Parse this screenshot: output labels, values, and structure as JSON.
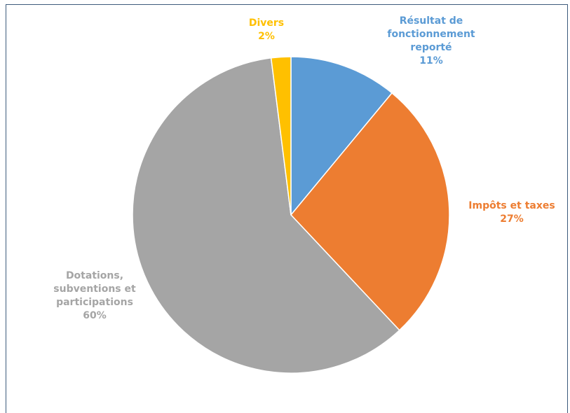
{
  "chart_data": {
    "type": "pie",
    "title": "",
    "slices": [
      {
        "label_lines": [
          "Résultat de",
          "fonctionnement",
          "reporté"
        ],
        "label": "Résultat de fonctionnement reporté",
        "value": 11,
        "value_label": "11%",
        "color": "#5b9bd5"
      },
      {
        "label_lines": [
          "Impôts et taxes"
        ],
        "label": "Impôts et taxes",
        "value": 27,
        "value_label": "27%",
        "color": "#ed7d31"
      },
      {
        "label_lines": [
          "Dotations,",
          "subventions et",
          "participations"
        ],
        "label": "Dotations, subventions et participations",
        "value": 60,
        "value_label": "60%",
        "color": "#a5a5a5"
      },
      {
        "label_lines": [
          "Divers"
        ],
        "label": "Divers",
        "value": 2,
        "value_label": "2%",
        "color": "#ffc000"
      }
    ],
    "legend": "none",
    "start_angle_deg": 0,
    "direction": "clockwise"
  },
  "colors": {
    "frame_border": "#3d5b7c",
    "background": "#ffffff",
    "slice_separator": "#ffffff"
  }
}
